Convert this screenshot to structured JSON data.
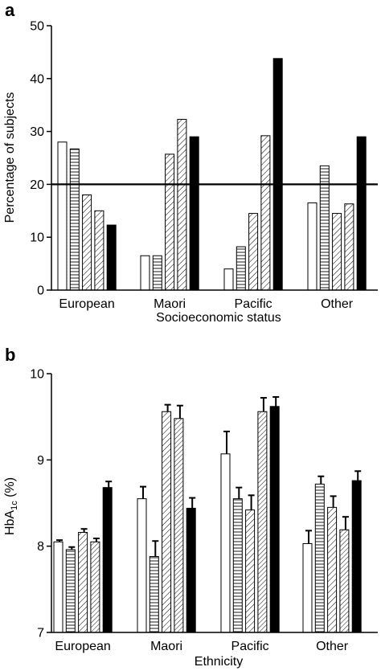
{
  "chart_data": [
    {
      "type": "bar",
      "panel_label": "a",
      "title": "",
      "xlabel": "Socioeconomic status",
      "ylabel": "Percentage of subjects",
      "ylim": [
        0,
        50
      ],
      "yticks": [
        "0",
        "10",
        "20",
        "30",
        "40",
        "50"
      ],
      "categories": [
        "European",
        "Maori",
        "Pacific",
        "Other"
      ],
      "reference_line": 20,
      "grid": false,
      "legend": "none",
      "bar_patterns": [
        "open",
        "horizontal-lines",
        "diagonal-lines",
        "diagonal-lines",
        "solid"
      ],
      "series": [
        {
          "values": [
            28,
            6.5,
            4,
            16.5
          ]
        },
        {
          "values": [
            26.7,
            6.5,
            8.2,
            23.5
          ]
        },
        {
          "values": [
            18,
            25.7,
            14.5,
            14.5
          ]
        },
        {
          "values": [
            15,
            32.3,
            29.2,
            16.3
          ]
        },
        {
          "values": [
            12.3,
            29,
            43.8,
            29
          ]
        }
      ]
    },
    {
      "type": "bar",
      "panel_label": "b",
      "title": "",
      "xlabel": "Ethnicity",
      "ylabel_main": "HbA",
      "ylabel_sub": "1c",
      "ylabel_rest": " (%)",
      "ylim": [
        7,
        10
      ],
      "yticks": [
        "7",
        "8",
        "9",
        "10"
      ],
      "categories": [
        "European",
        "Maori",
        "Pacific",
        "Other"
      ],
      "grid": false,
      "legend": "none",
      "error_bars": "positive",
      "bar_patterns": [
        "open",
        "horizontal-lines",
        "diagonal-lines",
        "diagonal-lines",
        "solid"
      ],
      "series": [
        {
          "values": [
            8.05,
            8.55,
            9.07,
            8.03
          ],
          "errors": [
            0.02,
            0.14,
            0.26,
            0.15
          ]
        },
        {
          "values": [
            7.96,
            7.88,
            8.55,
            8.72
          ],
          "errors": [
            0.03,
            0.18,
            0.13,
            0.09
          ]
        },
        {
          "values": [
            8.16,
            9.56,
            8.42,
            8.45
          ],
          "errors": [
            0.04,
            0.08,
            0.17,
            0.13
          ]
        },
        {
          "values": [
            8.05,
            9.48,
            9.56,
            8.19
          ],
          "errors": [
            0.04,
            0.15,
            0.16,
            0.15
          ]
        },
        {
          "values": [
            8.68,
            8.44,
            9.62,
            8.76
          ],
          "errors": [
            0.07,
            0.12,
            0.11,
            0.11
          ]
        }
      ]
    }
  ]
}
